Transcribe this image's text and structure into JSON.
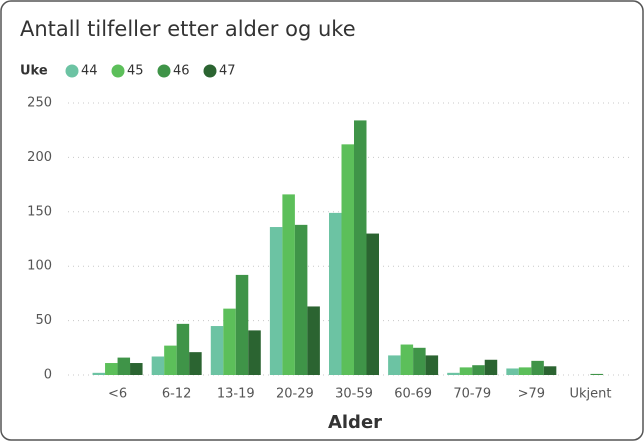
{
  "chart_data": {
    "type": "bar",
    "title": "Antall tilfeller etter alder og uke",
    "legend_title": "Uke",
    "xlabel": "Alder",
    "categories": [
      "<6",
      "6-12",
      "13-19",
      "20-29",
      "30-59",
      "60-69",
      "70-79",
      ">79",
      "Ukjent"
    ],
    "series": [
      {
        "name": "44",
        "color": "#6cc3a3",
        "values": [
          2,
          17,
          45,
          136,
          149,
          18,
          2,
          6,
          0
        ]
      },
      {
        "name": "45",
        "color": "#5cbf5a",
        "values": [
          11,
          27,
          61,
          166,
          212,
          28,
          7,
          7,
          0
        ]
      },
      {
        "name": "46",
        "color": "#3f9448",
        "values": [
          16,
          47,
          92,
          138,
          234,
          25,
          9,
          13,
          1
        ]
      },
      {
        "name": "47",
        "color": "#2b6431",
        "values": [
          11,
          21,
          41,
          63,
          130,
          18,
          14,
          8,
          0
        ]
      }
    ],
    "ylim": [
      0,
      250
    ],
    "yticks": [
      0,
      50,
      100,
      150,
      200,
      250
    ],
    "grid": true
  }
}
